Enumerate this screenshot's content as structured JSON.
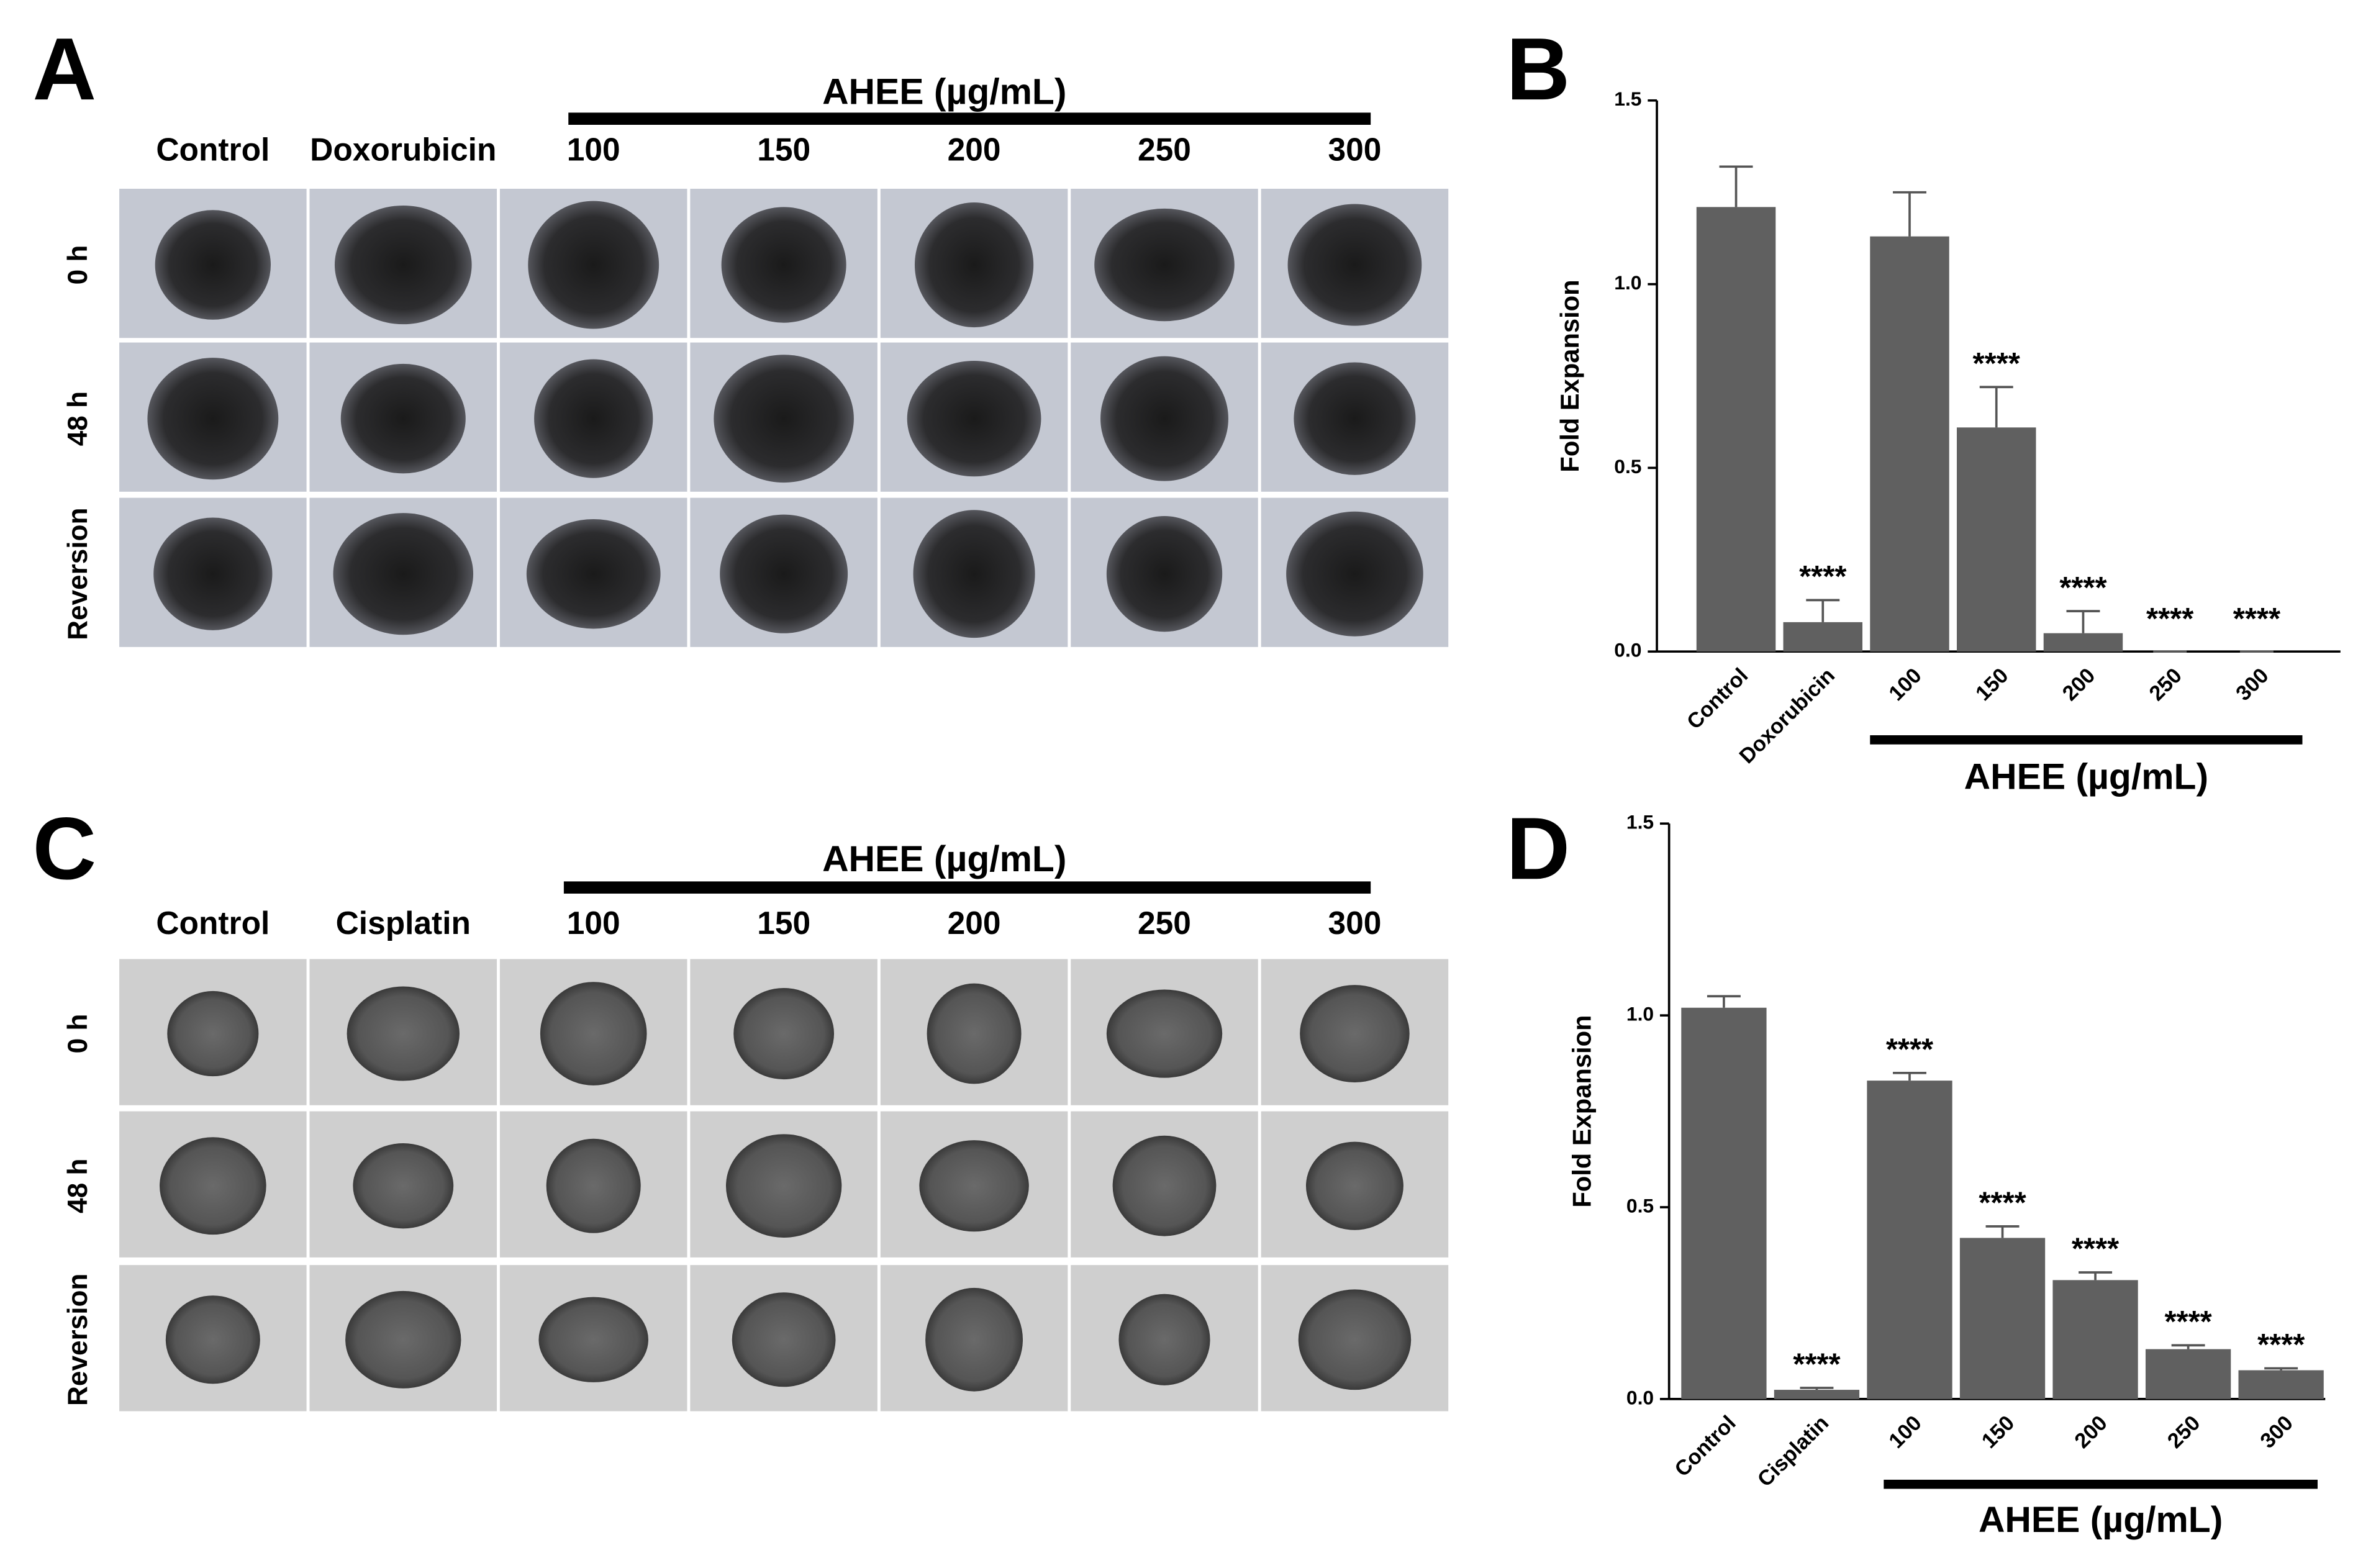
{
  "panel_labels": [
    "A",
    "B",
    "C",
    "D"
  ],
  "grids": [
    {
      "group_label": "AHEE (µg/mL)",
      "columns": [
        "Control",
        "Doxorubicin",
        "100",
        "150",
        "200",
        "250",
        "300"
      ],
      "rows": [
        "0 h",
        "48 h",
        "Reversion"
      ]
    },
    {
      "group_label": "AHEE (µg/mL)",
      "columns": [
        "Control",
        "Cisplatin",
        "100",
        "150",
        "200",
        "250",
        "300"
      ],
      "rows": [
        "0 h",
        "48 h",
        "Reversion"
      ]
    }
  ],
  "chart_data": [
    {
      "type": "bar",
      "ylabel": "Fold Expansion",
      "group_label": "AHEE (µg/mL)",
      "color": "#606060",
      "categories": [
        "Control",
        "Doxorubicin",
        "100",
        "150",
        "200",
        "250",
        "300"
      ],
      "values": [
        1.21,
        0.08,
        1.13,
        0.61,
        0.05,
        0,
        0
      ],
      "errors": [
        0.11,
        0.06,
        0.12,
        0.11,
        0.06,
        0,
        0
      ],
      "annotations": [
        null,
        "****",
        null,
        "****",
        "****",
        "****",
        "****"
      ],
      "ylim": [
        0,
        1.5
      ],
      "yticks": [
        {
          "value": 0,
          "label": "0.0"
        },
        0.5,
        {
          "value": 1,
          "label": "1.0"
        },
        1.5
      ]
    },
    {
      "type": "bar",
      "ylabel": "Fold Expansion",
      "group_label": "AHEE (µg/mL)",
      "color": "#606060",
      "categories": [
        "Control",
        "Cisplatin",
        "100",
        "150",
        "200",
        "250",
        "300"
      ],
      "values": [
        1.02,
        0.024,
        0.83,
        0.42,
        0.31,
        0.13,
        0.075
      ],
      "errors": [
        0.03,
        0.005,
        0.02,
        0.03,
        0.02,
        0.01,
        0.005
      ],
      "annotations": [
        null,
        "****",
        "****",
        "****",
        "****",
        "****",
        "****"
      ],
      "ylim": [
        0,
        1.5
      ],
      "yticks": [
        {
          "value": 0,
          "label": "0.0"
        },
        0.5,
        {
          "value": 1,
          "label": "1.0"
        },
        1.5
      ]
    }
  ]
}
